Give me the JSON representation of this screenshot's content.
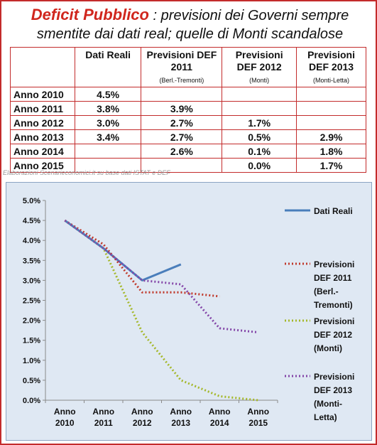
{
  "header": {
    "title_main": "Deficit Pubblico",
    "title_rest": " : previsioni dei Governi sempre",
    "title_line2": "smentite dai dati real; quelle di Monti scandalose"
  },
  "table": {
    "columns": [
      {
        "label": "Dati Reali",
        "sub": ""
      },
      {
        "label": "Previsioni DEF 2011",
        "sub": "(Berl.-Tremonti)"
      },
      {
        "label": "Previsioni DEF 2012",
        "sub": "(Monti)"
      },
      {
        "label": "Previsioni DEF 2013",
        "sub": "(Monti-Letta)"
      }
    ],
    "rows": [
      {
        "year": "Anno 2010",
        "cells": [
          "4.5%",
          "",
          "",
          ""
        ]
      },
      {
        "year": "Anno 2011",
        "cells": [
          "3.8%",
          "3.9%",
          "",
          ""
        ]
      },
      {
        "year": "Anno 2012",
        "cells": [
          "3.0%",
          "2.7%",
          "1.7%",
          ""
        ]
      },
      {
        "year": "Anno 2013",
        "cells": [
          "3.4%",
          "2.7%",
          "0.5%",
          "2.9%"
        ]
      },
      {
        "year": "Anno 2014",
        "cells": [
          "",
          "2.6%",
          "0.1%",
          "1.8%"
        ]
      },
      {
        "year": "Anno 2015",
        "cells": [
          "",
          "",
          "0.0%",
          "1.7%"
        ]
      }
    ]
  },
  "credit": "Elaborazioni Scenarieconomici.it su base dati ISTAT e DEF",
  "chart_data": {
    "type": "line",
    "title": "",
    "categories": [
      "Anno 2010",
      "Anno 2011",
      "Anno 2012",
      "Anno 2013",
      "Anno 2014",
      "Anno 2015"
    ],
    "category_lines": [
      [
        "Anno",
        "2010"
      ],
      [
        "Anno",
        "2011"
      ],
      [
        "Anno",
        "2012"
      ],
      [
        "Anno",
        "2013"
      ],
      [
        "Anno",
        "2014"
      ],
      [
        "Anno",
        "2015"
      ]
    ],
    "ylim": [
      0,
      5
    ],
    "yticks": [
      0,
      0.5,
      1,
      1.5,
      2,
      2.5,
      3,
      3.5,
      4,
      4.5,
      5
    ],
    "ytick_labels": [
      "0.0%",
      "0.5%",
      "1.0%",
      "1.5%",
      "2.0%",
      "2.5%",
      "3.0%",
      "3.5%",
      "4.0%",
      "4.5%",
      "5.0%"
    ],
    "grid": false,
    "legend_position": "right",
    "series": [
      {
        "name": "Dati Reali",
        "legend_lines": [
          "Dati Reali"
        ],
        "color": "#4a7ebb",
        "style": "solid",
        "values": [
          4.5,
          3.8,
          3.0,
          3.4,
          null,
          null
        ]
      },
      {
        "name": "Previsioni DEF 2011 (Berl.-Tremonti)",
        "legend_lines": [
          "Previsioni",
          "DEF 2011",
          "(Berl.-",
          "Tremonti)"
        ],
        "color": "#c0392b",
        "style": "dotted",
        "values": [
          4.5,
          3.9,
          2.7,
          2.7,
          2.6,
          null
        ]
      },
      {
        "name": "Previsioni DEF 2012 (Monti)",
        "legend_lines": [
          "Previsioni",
          "DEF 2012",
          "(Monti)"
        ],
        "color": "#a5b82a",
        "style": "dotted",
        "values": [
          4.5,
          3.8,
          1.7,
          0.5,
          0.1,
          0.0
        ]
      },
      {
        "name": "Previsioni DEF 2013 (Monti-Letta)",
        "legend_lines": [
          "Previsioni",
          "DEF 2013",
          "(Monti-",
          "Letta)"
        ],
        "color": "#8446a8",
        "style": "dotted",
        "values": [
          4.5,
          3.8,
          3.0,
          2.9,
          1.8,
          1.7
        ]
      }
    ]
  }
}
